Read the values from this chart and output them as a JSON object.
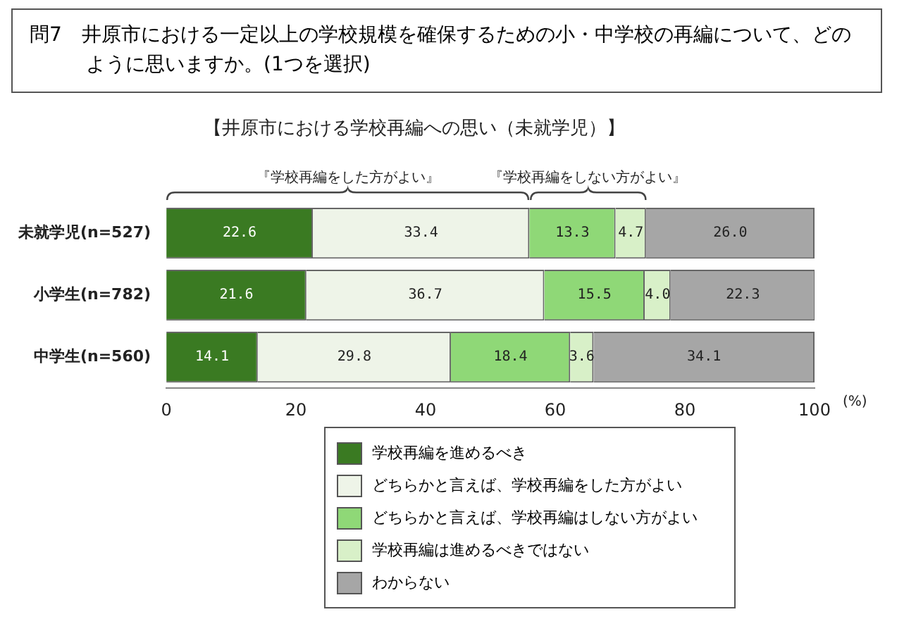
{
  "chart_data": {
    "type": "bar",
    "orientation": "horizontal",
    "stacked": true,
    "title": "問7　井原市における一定以上の学校規模を確保するための小・中学校の再編について、どのように思いますか。(1つを選択)",
    "subtitle": "【井原市における学校再編への思い（未就学児）】",
    "xlabel": "(%)",
    "annotations": [
      "『学校再編をした方がよい』",
      "『学校再編をしない方がよい』"
    ],
    "categories": [
      "未就学児(n=527)",
      "小学生(n=782)",
      "中学生(n=560)"
    ],
    "series": [
      {
        "name": "学校再編を進めるべき",
        "color": "#3a7a22",
        "values": [
          22.6,
          21.6,
          14.1
        ],
        "value_labels": [
          "22.6",
          "21.6",
          "14.1"
        ]
      },
      {
        "name": "どちらかと言えば、学校再編をした方がよい",
        "color": "#eef4e8",
        "values": [
          33.4,
          36.7,
          29.8
        ],
        "value_labels": [
          "33.4",
          "36.7",
          "29.8"
        ]
      },
      {
        "name": "どちらかと言えば、学校再編はしない方がよい",
        "color": "#8fd877",
        "values": [
          13.3,
          15.5,
          18.4
        ],
        "value_labels": [
          "13.3",
          "15.5",
          "18.4"
        ]
      },
      {
        "name": "学校再編は進めるべきではない",
        "color": "#d8f0c8",
        "values": [
          4.7,
          4.0,
          3.6
        ],
        "value_labels": [
          "4.7",
          "4.0",
          "3.6"
        ]
      },
      {
        "name": "わからない",
        "color": "#a6a6a6",
        "values": [
          26.0,
          22.3,
          34.1
        ],
        "value_labels": [
          "26.0",
          "22.3",
          "34.1"
        ]
      }
    ],
    "xlim": [
      0,
      100
    ],
    "xticks": [
      0,
      20,
      40,
      60,
      80,
      100
    ],
    "grid": false,
    "legend": "bottom"
  }
}
